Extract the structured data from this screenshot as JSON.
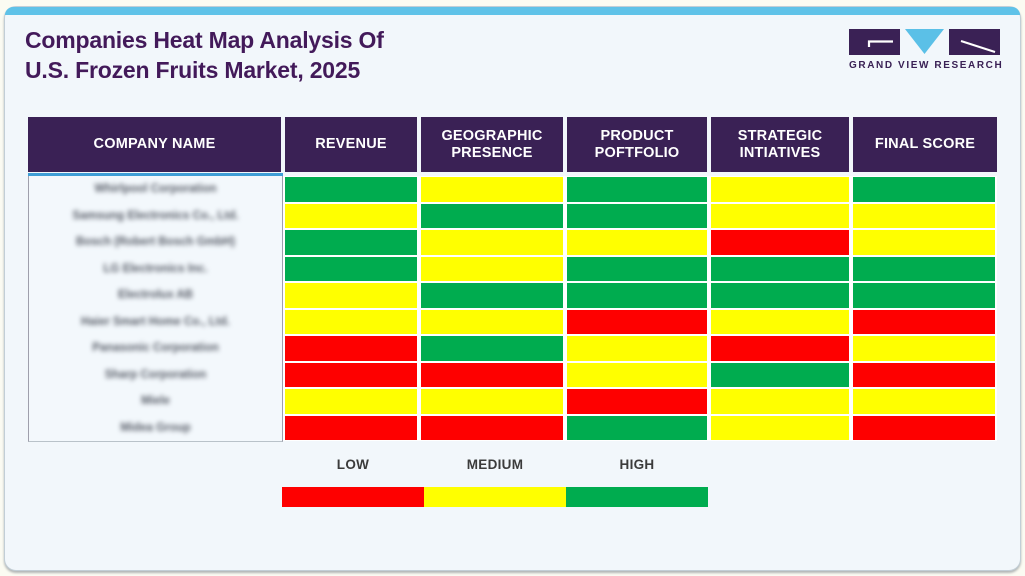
{
  "header": {
    "title_lines": [
      "Companies Heat Map Analysis Of",
      "U.S. Frozen Fruits Market, 2025"
    ],
    "logo_text": "GRAND VIEW RESEARCH"
  },
  "chart_data": {
    "type": "heatmap",
    "title": "Companies Heat Map Analysis Of U.S. Frozen Fruits Market, 2025",
    "first_column_header": "COMPANY NAME",
    "columns": [
      "REVENUE",
      "GEOGRAPHIC PRESENCE",
      "PRODUCT POFTFOLIO",
      "STRATEGIC INTIATIVES",
      "FINAL SCORE"
    ],
    "rows": [
      "Whirlpool Corporation",
      "Samsung Electronics Co., Ltd.",
      "Bosch (Robert Bosch GmbH)",
      "LG Electronics Inc.",
      "Electrolux AB",
      "Haier Smart Home Co., Ltd.",
      "Panasonic Corporation",
      "Sharp Corporation",
      "Miele",
      "Midea Group"
    ],
    "values": [
      [
        "high",
        "medium",
        "high",
        "medium",
        "high"
      ],
      [
        "medium",
        "high",
        "high",
        "medium",
        "medium"
      ],
      [
        "high",
        "medium",
        "medium",
        "low",
        "medium"
      ],
      [
        "high",
        "medium",
        "high",
        "high",
        "high"
      ],
      [
        "medium",
        "high",
        "high",
        "high",
        "high"
      ],
      [
        "medium",
        "medium",
        "low",
        "medium",
        "low"
      ],
      [
        "low",
        "high",
        "medium",
        "low",
        "medium"
      ],
      [
        "low",
        "low",
        "medium",
        "high",
        "low"
      ],
      [
        "medium",
        "medium",
        "low",
        "medium",
        "medium"
      ],
      [
        "low",
        "low",
        "high",
        "medium",
        "low"
      ]
    ],
    "scale_note": "company names are blurred in source image",
    "legend_position": "bottom"
  },
  "legend": {
    "items": [
      {
        "label": "LOW",
        "level": "low"
      },
      {
        "label": "MEDIUM",
        "level": "medium"
      },
      {
        "label": "HIGH",
        "level": "high"
      }
    ]
  },
  "colors": {
    "low": "#fe0000",
    "medium": "#ffff00",
    "high": "#00ac4f",
    "header_bg": "#3a2155",
    "title_text": "#431a5a",
    "accent_blue": "#5fc2e8",
    "company_cell_bg": "#f3f8fc",
    "card_bg": "#f2f7fb"
  }
}
